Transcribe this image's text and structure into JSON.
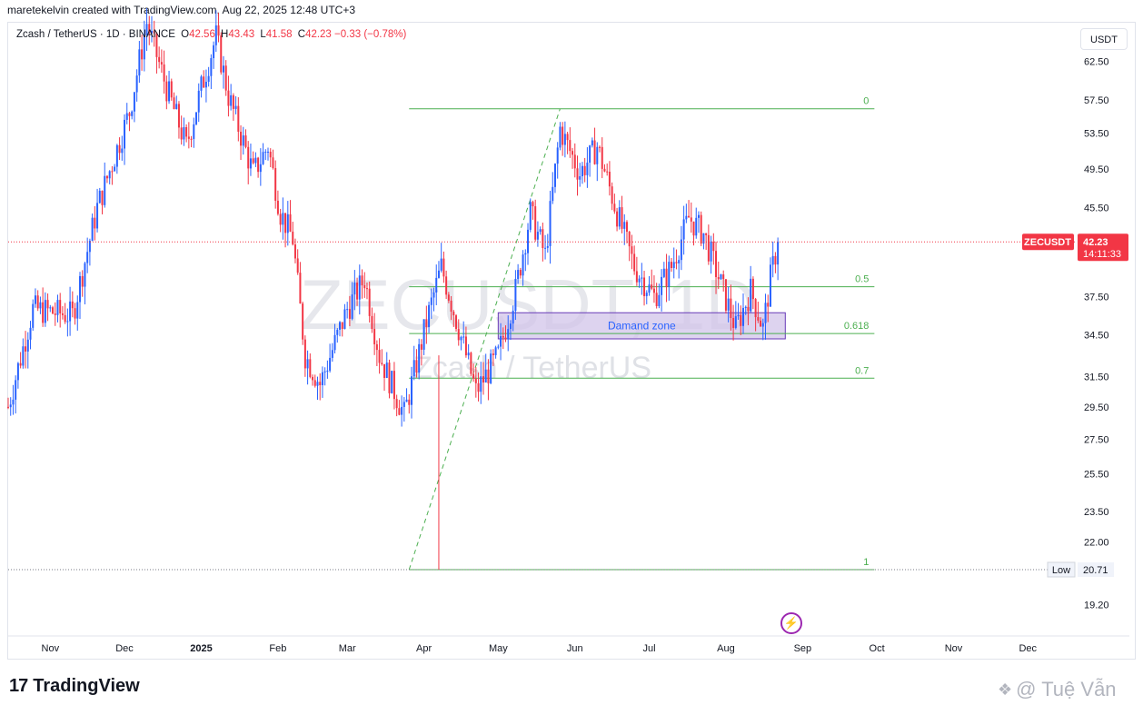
{
  "credit": "maretekelvin created with TradingView.com, Aug 22, 2025 12:48 UTC+3",
  "legend": {
    "symbol": "Zcash / TetherUS · 1D · BINANCE",
    "o_label": "O",
    "o_value": "42.56",
    "h_label": "H",
    "h_value": "43.43",
    "l_label": "L",
    "l_value": "41.58",
    "c_label": "C",
    "c_value": "42.23",
    "change": "−0.33 (−0.78%)"
  },
  "unit_badge": "USDT",
  "watermark": {
    "ticker": "ZECUSDT, 1D",
    "name": "Zcash / TetherUS"
  },
  "brand": "TradingView",
  "signature": "@ Tuệ Vẫn",
  "colors": {
    "up": "#2962ff",
    "down": "#f23645",
    "fib": "#4caf50",
    "zone": "#d1c4e9",
    "zone_border": "#673ab7"
  },
  "chart_data": {
    "type": "candlestick",
    "symbol": "ZECUSDT",
    "timeframe": "1D",
    "y_ticks": [
      62.5,
      57.5,
      53.5,
      49.5,
      45.5,
      37.5,
      34.5,
      31.5,
      29.5,
      27.5,
      25.5,
      23.5,
      22.0,
      19.2
    ],
    "y_tick_labels": [
      "62.50",
      "57.50",
      "53.50",
      "49.50",
      "45.50",
      "37.50",
      "34.50",
      "31.50",
      "29.50",
      "27.50",
      "25.50",
      "23.50",
      "22.00",
      "19.20"
    ],
    "y_scale": "log",
    "y_range": [
      18.0,
      68.0
    ],
    "x_ticks": [
      "Nov",
      "Dec",
      "2025",
      "Feb",
      "Mar",
      "Apr",
      "May",
      "Jun",
      "Jul",
      "Aug",
      "Sep",
      "Oct",
      "Nov",
      "Dec"
    ],
    "x_range": [
      "2024-10-15",
      "2025-12-20"
    ],
    "x_tick_dates": [
      "2024-11-01",
      "2024-12-01",
      "2025-01-01",
      "2025-02-01",
      "2025-03-01",
      "2025-04-01",
      "2025-05-01",
      "2025-06-01",
      "2025-07-01",
      "2025-08-01",
      "2025-09-01",
      "2025-10-01",
      "2025-11-01",
      "2025-12-01"
    ],
    "last_price": {
      "label": "ZECUSDT",
      "value": "42.23",
      "countdown": "14:11:33",
      "price": 42.23
    },
    "low_marker": {
      "label": "Low",
      "value": "20.71",
      "price": 20.71
    },
    "fib_levels": [
      {
        "label": "0",
        "price": 56.4
      },
      {
        "label": "0.5",
        "price": 38.3
      },
      {
        "label": "0.618",
        "price": 34.6
      },
      {
        "label": "0.7",
        "price": 31.4
      },
      {
        "label": "1",
        "price": 20.71
      }
    ],
    "fib_range": {
      "start": "2025-03-26",
      "end": "2025-05-26"
    },
    "fib_line_end": "2025-09-30",
    "demand_zone": {
      "label": "Damand zone",
      "top": 36.2,
      "bottom": 34.2,
      "start": "2025-05-01",
      "end": "2025-08-25"
    },
    "key_points": [
      {
        "date": "2024-10-15",
        "price": 29.5
      },
      {
        "date": "2024-10-25",
        "price": 36.5
      },
      {
        "date": "2024-11-10",
        "price": 36.0
      },
      {
        "date": "2024-11-20",
        "price": 45.5
      },
      {
        "date": "2024-12-03",
        "price": 56.0
      },
      {
        "date": "2024-12-10",
        "price": 68.0
      },
      {
        "date": "2024-12-18",
        "price": 59.0
      },
      {
        "date": "2024-12-26",
        "price": 52.0
      },
      {
        "date": "2025-01-01",
        "price": 59.0
      },
      {
        "date": "2025-01-07",
        "price": 66.0
      },
      {
        "date": "2025-01-12",
        "price": 58.0
      },
      {
        "date": "2025-01-22",
        "price": 49.0
      },
      {
        "date": "2025-01-28",
        "price": 52.0
      },
      {
        "date": "2025-02-02",
        "price": 45.0
      },
      {
        "date": "2025-02-07",
        "price": 42.5
      },
      {
        "date": "2025-02-12",
        "price": 33.0
      },
      {
        "date": "2025-02-18",
        "price": 31.0
      },
      {
        "date": "2025-03-01",
        "price": 36.5
      },
      {
        "date": "2025-03-08",
        "price": 39.0
      },
      {
        "date": "2025-03-14",
        "price": 33.0
      },
      {
        "date": "2025-03-24",
        "price": 29.0
      },
      {
        "date": "2025-04-02",
        "price": 35.5
      },
      {
        "date": "2025-04-08",
        "price": 40.0
      },
      {
        "date": "2025-04-15",
        "price": 35.0
      },
      {
        "date": "2025-04-22",
        "price": 30.5
      },
      {
        "date": "2025-05-01",
        "price": 33.0
      },
      {
        "date": "2025-05-08",
        "price": 38.0
      },
      {
        "date": "2025-05-14",
        "price": 45.0
      },
      {
        "date": "2025-05-20",
        "price": 41.0
      },
      {
        "date": "2025-05-26",
        "price": 54.0
      },
      {
        "date": "2025-06-03",
        "price": 49.0
      },
      {
        "date": "2025-06-10",
        "price": 52.0
      },
      {
        "date": "2025-06-18",
        "price": 45.0
      },
      {
        "date": "2025-06-25",
        "price": 40.0
      },
      {
        "date": "2025-07-03",
        "price": 37.5
      },
      {
        "date": "2025-07-10",
        "price": 40.0
      },
      {
        "date": "2025-07-17",
        "price": 44.5
      },
      {
        "date": "2025-07-23",
        "price": 43.0
      },
      {
        "date": "2025-07-30",
        "price": 38.5
      },
      {
        "date": "2025-08-05",
        "price": 35.0
      },
      {
        "date": "2025-08-11",
        "price": 38.0
      },
      {
        "date": "2025-08-16",
        "price": 35.0
      },
      {
        "date": "2025-08-19",
        "price": 39.0
      },
      {
        "date": "2025-08-22",
        "price": 42.23
      }
    ]
  }
}
